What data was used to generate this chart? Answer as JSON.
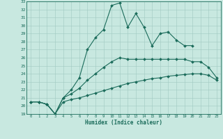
{
  "xlabel": "Humidex (Indice chaleur)",
  "background_color": "#c8e8e0",
  "grid_color": "#a0c8c0",
  "line_color": "#1a6b5a",
  "xlim": [
    -0.5,
    23.5
  ],
  "ylim": [
    19,
    33
  ],
  "xticks": [
    0,
    1,
    2,
    3,
    4,
    5,
    6,
    7,
    8,
    9,
    10,
    11,
    12,
    13,
    14,
    15,
    16,
    17,
    18,
    19,
    20,
    21,
    22,
    23
  ],
  "yticks": [
    19,
    20,
    21,
    22,
    23,
    24,
    25,
    26,
    27,
    28,
    29,
    30,
    31,
    32,
    33
  ],
  "series": [
    {
      "x": [
        0,
        1,
        2,
        3,
        4,
        5,
        6,
        7,
        8,
        9,
        10,
        11,
        12,
        13,
        14,
        15,
        16,
        17,
        18,
        19,
        20
      ],
      "y": [
        20.5,
        20.5,
        20.2,
        19.0,
        21.0,
        22.0,
        23.5,
        27.0,
        28.5,
        29.5,
        32.5,
        32.8,
        29.8,
        31.5,
        29.8,
        27.5,
        29.0,
        29.2,
        28.2,
        27.5,
        27.5
      ],
      "marker": "D",
      "markersize": 2.0,
      "linewidth": 0.8
    },
    {
      "x": [
        0,
        1,
        2,
        3,
        4,
        5,
        6,
        7,
        8,
        9,
        10,
        11,
        12,
        13,
        14,
        15,
        16,
        17,
        18,
        19,
        20,
        21,
        22,
        23
      ],
      "y": [
        20.5,
        20.5,
        20.2,
        19.0,
        21.0,
        21.5,
        22.2,
        23.2,
        24.0,
        24.8,
        25.5,
        26.0,
        25.8,
        25.8,
        25.8,
        25.8,
        25.8,
        25.8,
        25.8,
        25.8,
        25.5,
        25.5,
        24.8,
        23.5
      ],
      "marker": "D",
      "markersize": 2.0,
      "linewidth": 0.8
    },
    {
      "x": [
        0,
        1,
        2,
        3,
        4,
        5,
        6,
        7,
        8,
        9,
        10,
        11,
        12,
        13,
        14,
        15,
        16,
        17,
        18,
        19,
        20,
        21,
        22,
        23
      ],
      "y": [
        20.5,
        20.5,
        20.2,
        19.0,
        20.5,
        20.8,
        21.0,
        21.3,
        21.6,
        21.9,
        22.2,
        22.5,
        22.8,
        23.0,
        23.2,
        23.4,
        23.5,
        23.7,
        23.8,
        23.9,
        24.0,
        24.0,
        23.8,
        23.2
      ],
      "marker": "D",
      "markersize": 2.0,
      "linewidth": 0.8
    }
  ]
}
